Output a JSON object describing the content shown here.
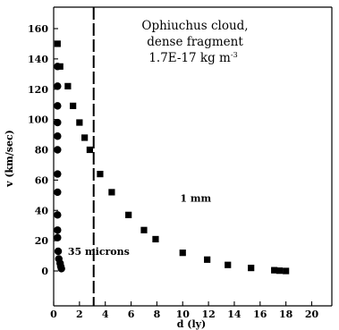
{
  "chart_data": {
    "type": "scatter",
    "title_lines": [
      "Ophiuchus cloud,",
      "dense fragment"
    ],
    "title_density": "1.7E-17 kg m",
    "title_density_sup": "-3",
    "xlabel": "d (ly)",
    "ylabel": "v (km/sec)",
    "xlim": [
      0,
      20
    ],
    "ylim": [
      0,
      160
    ],
    "x_ticks": [
      0,
      2,
      4,
      6,
      8,
      10,
      12,
      14,
      16,
      18,
      20
    ],
    "y_ticks": [
      0,
      20,
      40,
      60,
      80,
      100,
      120,
      140,
      160
    ],
    "grid": false,
    "legend": "none",
    "reference_line": {
      "orientation": "vertical",
      "x": 3.1,
      "style": "dashed"
    },
    "series": [
      {
        "name": "35 microns",
        "marker": "circle",
        "points": [
          [
            0.3,
            135
          ],
          [
            0.3,
            122
          ],
          [
            0.3,
            109
          ],
          [
            0.3,
            98
          ],
          [
            0.3,
            89
          ],
          [
            0.3,
            80
          ],
          [
            0.3,
            64
          ],
          [
            0.3,
            52
          ],
          [
            0.3,
            37
          ],
          [
            0.3,
            27
          ],
          [
            0.3,
            22
          ],
          [
            0.35,
            13
          ],
          [
            0.4,
            8
          ],
          [
            0.5,
            5
          ],
          [
            0.55,
            3
          ],
          [
            0.6,
            1.5
          ]
        ]
      },
      {
        "name": "1 mm",
        "marker": "square",
        "points": [
          [
            0.3,
            150
          ],
          [
            0.5,
            135
          ],
          [
            1.1,
            122
          ],
          [
            1.5,
            109
          ],
          [
            2.0,
            98
          ],
          [
            2.4,
            88
          ],
          [
            2.8,
            80
          ],
          [
            3.6,
            64
          ],
          [
            4.5,
            52
          ],
          [
            5.8,
            37
          ],
          [
            7.0,
            27
          ],
          [
            7.9,
            21
          ],
          [
            10.0,
            12
          ],
          [
            11.9,
            7.5
          ],
          [
            13.5,
            4
          ],
          [
            15.3,
            2
          ],
          [
            17.1,
            0.5
          ],
          [
            17.5,
            0.2
          ],
          [
            18.0,
            0
          ]
        ]
      }
    ],
    "annotations": [
      {
        "text": "35 microns",
        "x": 1.1,
        "y": 13
      },
      {
        "text": "1 mm",
        "x": 9.8,
        "y": 48
      }
    ]
  }
}
